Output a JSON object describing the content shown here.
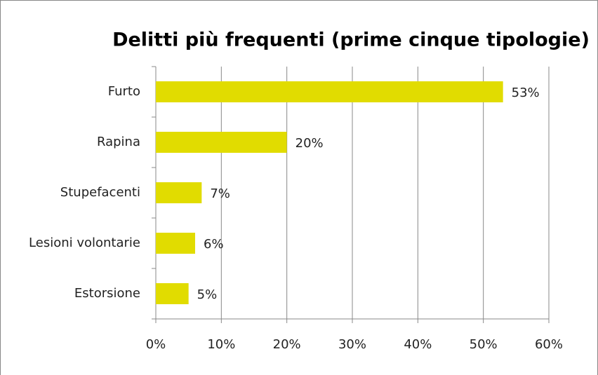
{
  "chart_data": {
    "type": "bar",
    "orientation": "horizontal",
    "title": "Delitti più frequenti (prime cinque tipologie)",
    "categories": [
      "Furto",
      "Rapina",
      "Stupefacenti",
      "Lesioni volontarie",
      "Estorsione"
    ],
    "values": [
      53,
      20,
      7,
      6,
      5
    ],
    "value_labels": [
      "53%",
      "20%",
      "7%",
      "6%",
      "5%"
    ],
    "color": "#e1dc00",
    "xlim": [
      0,
      60
    ],
    "xticks": [
      {
        "value": 0,
        "label": "0%"
      },
      {
        "value": 10,
        "label": "10%"
      },
      {
        "value": 20,
        "label": "20%"
      },
      {
        "value": 30,
        "label": "30%"
      },
      {
        "value": 40,
        "label": "40%"
      },
      {
        "value": 50,
        "label": "50%"
      },
      {
        "value": 60,
        "label": "60%"
      }
    ],
    "grid": true
  }
}
